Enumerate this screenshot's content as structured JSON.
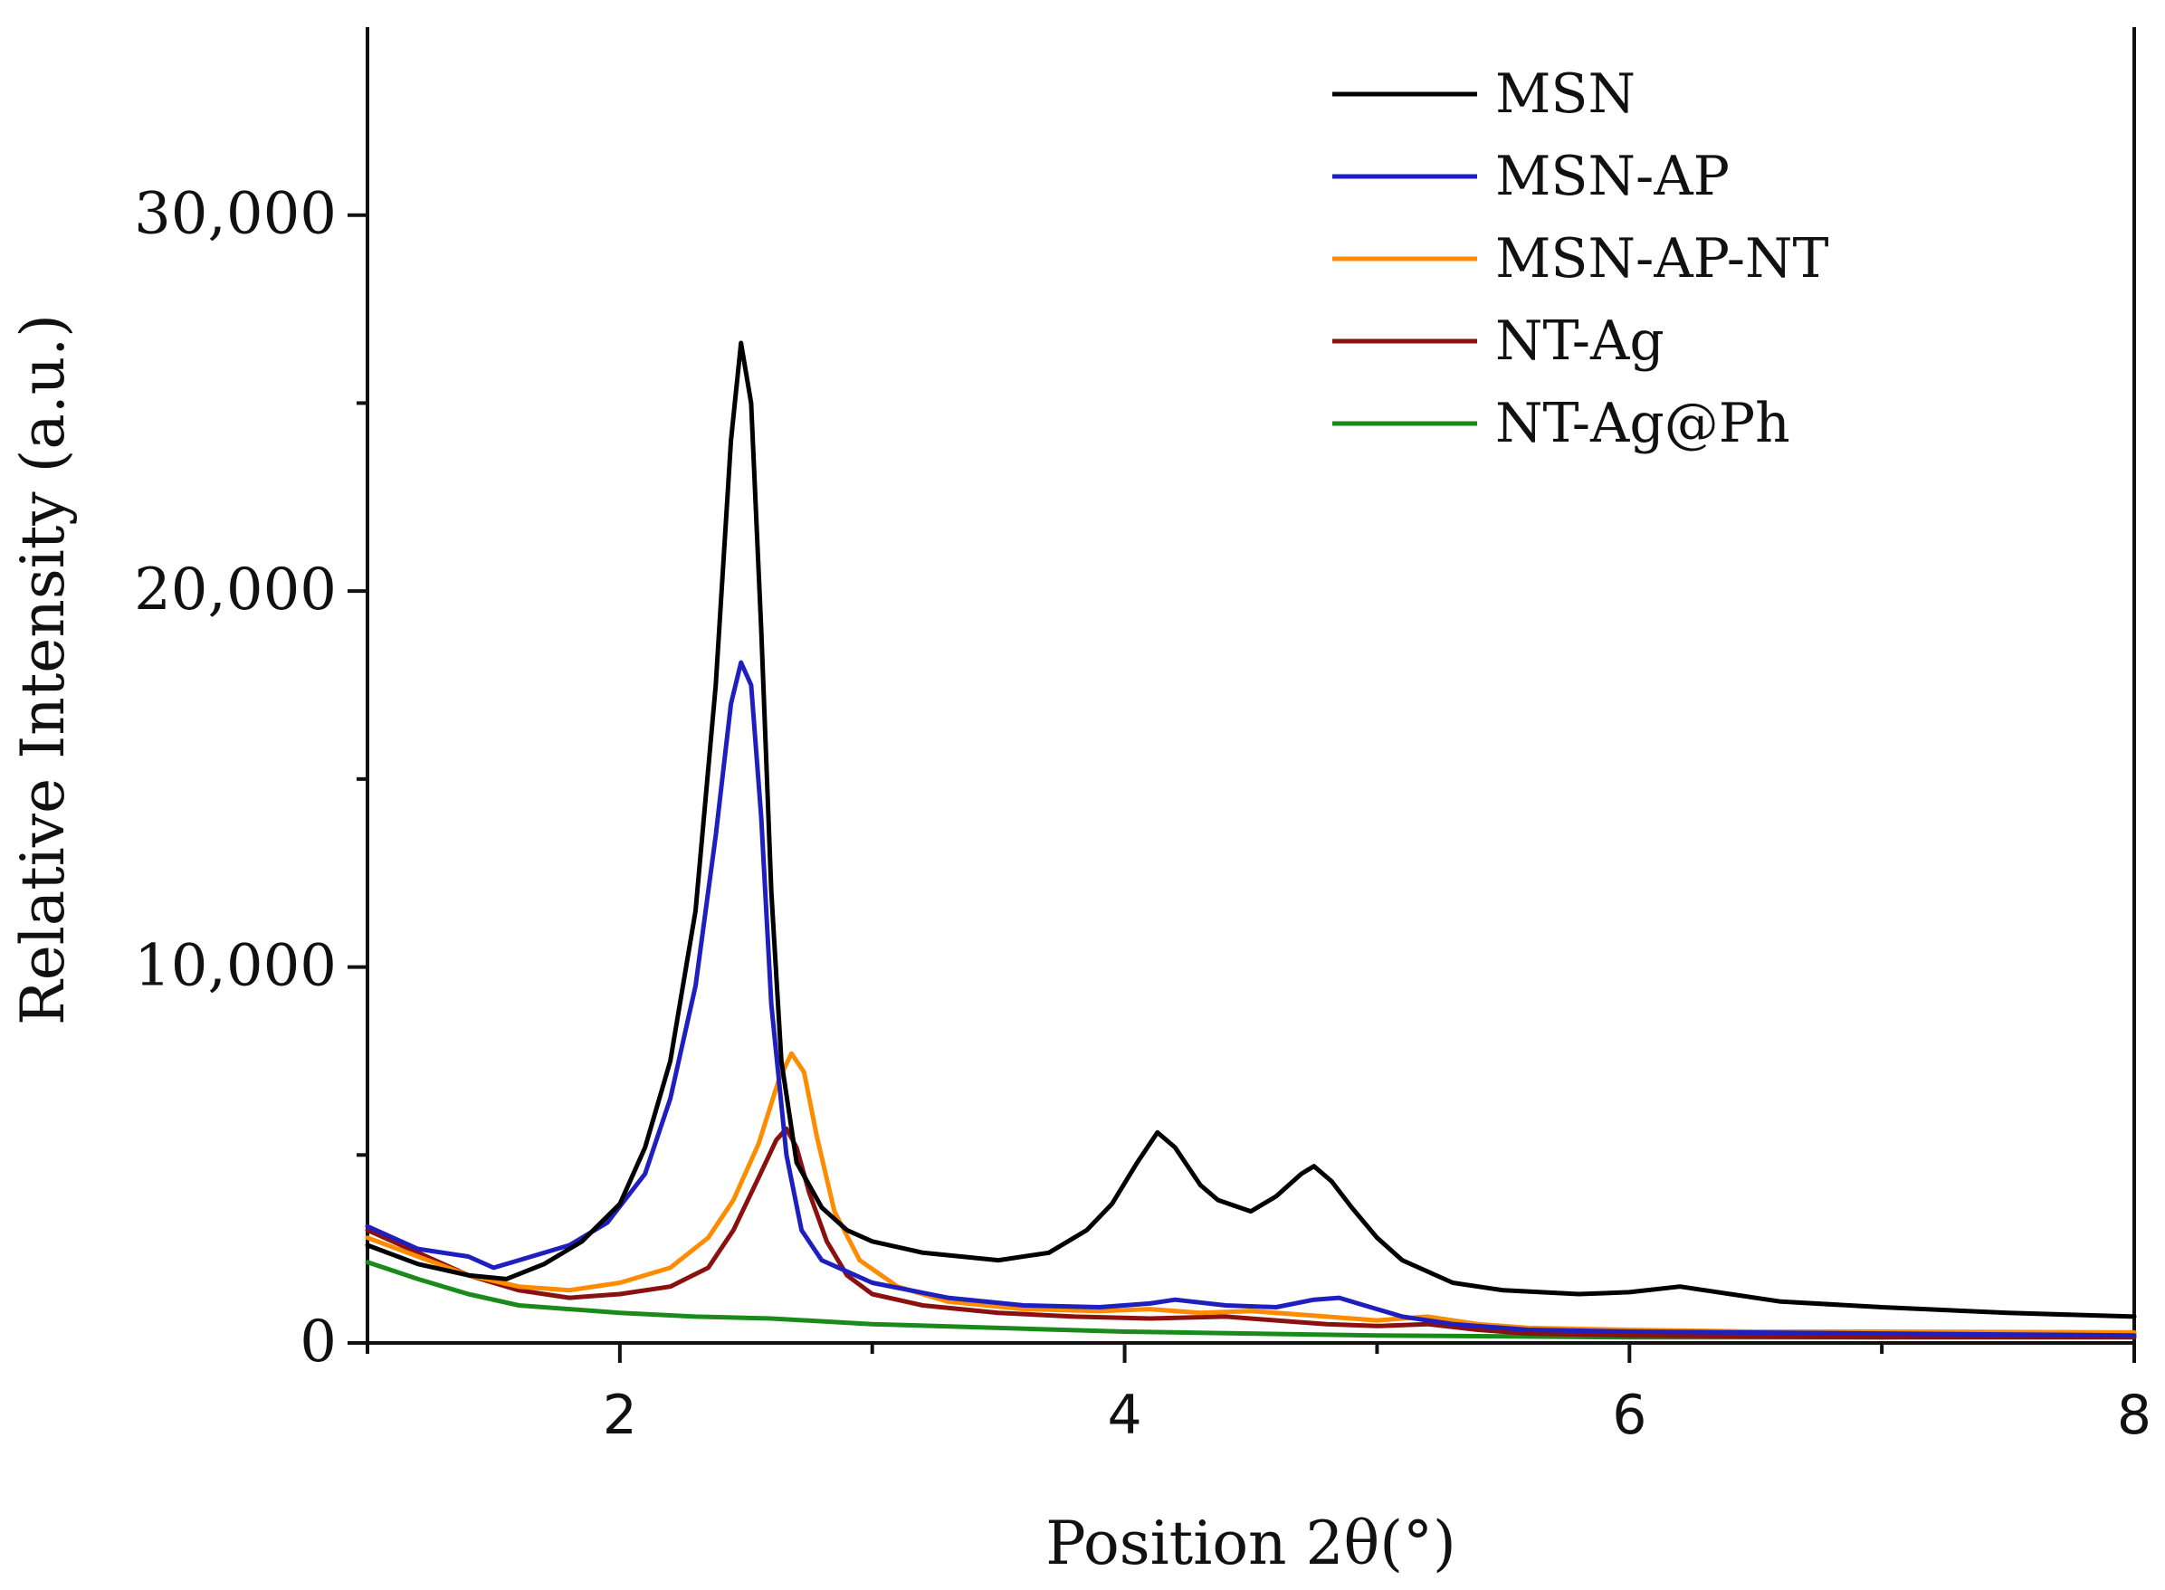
{
  "chart_data": {
    "type": "line",
    "title": "",
    "xlabel": "Position 2θ(°)",
    "ylabel": "Relative Intensity (a.u.)",
    "xlim": [
      1,
      8
    ],
    "ylim": [
      0,
      35000
    ],
    "x_ticks": [
      2,
      4,
      6,
      8
    ],
    "x_tick_labels": [
      "2",
      "4",
      "6",
      "8"
    ],
    "y_ticks": [
      0,
      10000,
      20000,
      30000
    ],
    "y_tick_labels": [
      "0",
      "10,000",
      "20,000",
      "30,000"
    ],
    "grid": false,
    "legend_position": "top-right",
    "series": [
      {
        "name": "MSN",
        "color": "#000000",
        "points": [
          [
            1.0,
            2600
          ],
          [
            1.2,
            2100
          ],
          [
            1.4,
            1800
          ],
          [
            1.55,
            1700
          ],
          [
            1.7,
            2100
          ],
          [
            1.85,
            2700
          ],
          [
            2.0,
            3700
          ],
          [
            2.1,
            5200
          ],
          [
            2.2,
            7500
          ],
          [
            2.3,
            11500
          ],
          [
            2.38,
            17500
          ],
          [
            2.44,
            24000
          ],
          [
            2.48,
            26600
          ],
          [
            2.52,
            25000
          ],
          [
            2.56,
            19000
          ],
          [
            2.6,
            12000
          ],
          [
            2.64,
            7500
          ],
          [
            2.7,
            4800
          ],
          [
            2.8,
            3600
          ],
          [
            2.9,
            3000
          ],
          [
            3.0,
            2700
          ],
          [
            3.2,
            2400
          ],
          [
            3.5,
            2200
          ],
          [
            3.7,
            2400
          ],
          [
            3.85,
            3000
          ],
          [
            3.95,
            3700
          ],
          [
            4.05,
            4800
          ],
          [
            4.13,
            5600
          ],
          [
            4.2,
            5200
          ],
          [
            4.3,
            4200
          ],
          [
            4.37,
            3800
          ],
          [
            4.5,
            3500
          ],
          [
            4.6,
            3900
          ],
          [
            4.7,
            4500
          ],
          [
            4.75,
            4700
          ],
          [
            4.82,
            4300
          ],
          [
            4.9,
            3600
          ],
          [
            5.0,
            2800
          ],
          [
            5.1,
            2200
          ],
          [
            5.3,
            1600
          ],
          [
            5.5,
            1400
          ],
          [
            5.8,
            1300
          ],
          [
            6.0,
            1350
          ],
          [
            6.2,
            1500
          ],
          [
            6.4,
            1300
          ],
          [
            6.6,
            1100
          ],
          [
            7.0,
            950
          ],
          [
            7.5,
            800
          ],
          [
            8.0,
            700
          ]
        ]
      },
      {
        "name": "MSN-AP",
        "color": "#1f1fbf",
        "points": [
          [
            1.0,
            3100
          ],
          [
            1.2,
            2500
          ],
          [
            1.4,
            2300
          ],
          [
            1.5,
            2000
          ],
          [
            1.6,
            2200
          ],
          [
            1.8,
            2600
          ],
          [
            1.95,
            3200
          ],
          [
            2.1,
            4500
          ],
          [
            2.2,
            6500
          ],
          [
            2.3,
            9500
          ],
          [
            2.38,
            13500
          ],
          [
            2.44,
            17000
          ],
          [
            2.48,
            18100
          ],
          [
            2.52,
            17500
          ],
          [
            2.56,
            14000
          ],
          [
            2.6,
            9000
          ],
          [
            2.66,
            5000
          ],
          [
            2.72,
            3000
          ],
          [
            2.8,
            2200
          ],
          [
            3.0,
            1600
          ],
          [
            3.3,
            1200
          ],
          [
            3.6,
            1000
          ],
          [
            3.9,
            950
          ],
          [
            4.1,
            1050
          ],
          [
            4.2,
            1150
          ],
          [
            4.4,
            1000
          ],
          [
            4.6,
            950
          ],
          [
            4.75,
            1150
          ],
          [
            4.85,
            1200
          ],
          [
            4.95,
            1000
          ],
          [
            5.1,
            700
          ],
          [
            5.3,
            500
          ],
          [
            5.6,
            350
          ],
          [
            6.0,
            300
          ],
          [
            7.0,
            250
          ],
          [
            8.0,
            200
          ]
        ]
      },
      {
        "name": "MSN-AP-NT",
        "color": "#ff8c00",
        "points": [
          [
            1.0,
            2800
          ],
          [
            1.2,
            2300
          ],
          [
            1.4,
            1800
          ],
          [
            1.6,
            1500
          ],
          [
            1.8,
            1400
          ],
          [
            2.0,
            1600
          ],
          [
            2.2,
            2000
          ],
          [
            2.35,
            2800
          ],
          [
            2.45,
            3800
          ],
          [
            2.55,
            5300
          ],
          [
            2.63,
            7000
          ],
          [
            2.68,
            7700
          ],
          [
            2.73,
            7200
          ],
          [
            2.78,
            5500
          ],
          [
            2.85,
            3500
          ],
          [
            2.95,
            2200
          ],
          [
            3.1,
            1500
          ],
          [
            3.3,
            1100
          ],
          [
            3.6,
            900
          ],
          [
            3.9,
            850
          ],
          [
            4.1,
            900
          ],
          [
            4.3,
            800
          ],
          [
            4.5,
            850
          ],
          [
            4.8,
            700
          ],
          [
            5.0,
            600
          ],
          [
            5.2,
            700
          ],
          [
            5.4,
            500
          ],
          [
            5.6,
            400
          ],
          [
            6.0,
            350
          ],
          [
            6.5,
            300
          ],
          [
            7.0,
            300
          ],
          [
            8.0,
            280
          ]
        ]
      },
      {
        "name": "NT-Ag",
        "color": "#8b1010",
        "points": [
          [
            1.0,
            3000
          ],
          [
            1.2,
            2400
          ],
          [
            1.4,
            1800
          ],
          [
            1.6,
            1400
          ],
          [
            1.8,
            1200
          ],
          [
            2.0,
            1300
          ],
          [
            2.2,
            1500
          ],
          [
            2.35,
            2000
          ],
          [
            2.45,
            3000
          ],
          [
            2.55,
            4400
          ],
          [
            2.62,
            5400
          ],
          [
            2.66,
            5700
          ],
          [
            2.7,
            5200
          ],
          [
            2.75,
            4000
          ],
          [
            2.82,
            2700
          ],
          [
            2.9,
            1800
          ],
          [
            3.0,
            1300
          ],
          [
            3.2,
            1000
          ],
          [
            3.5,
            800
          ],
          [
            3.8,
            700
          ],
          [
            4.1,
            650
          ],
          [
            4.4,
            700
          ],
          [
            4.6,
            600
          ],
          [
            4.8,
            500
          ],
          [
            5.0,
            450
          ],
          [
            5.2,
            500
          ],
          [
            5.4,
            350
          ],
          [
            5.6,
            250
          ],
          [
            6.0,
            200
          ],
          [
            7.0,
            150
          ],
          [
            8.0,
            150
          ]
        ]
      },
      {
        "name": "NT-Ag@Ph",
        "color": "#1a8a1a",
        "points": [
          [
            1.0,
            2150
          ],
          [
            1.2,
            1700
          ],
          [
            1.4,
            1300
          ],
          [
            1.6,
            1000
          ],
          [
            1.8,
            900
          ],
          [
            2.0,
            800
          ],
          [
            2.3,
            700
          ],
          [
            2.6,
            650
          ],
          [
            3.0,
            500
          ],
          [
            3.5,
            400
          ],
          [
            4.0,
            300
          ],
          [
            4.5,
            250
          ],
          [
            5.0,
            200
          ],
          [
            6.0,
            150
          ],
          [
            7.0,
            150
          ],
          [
            8.0,
            250
          ]
        ]
      }
    ]
  }
}
